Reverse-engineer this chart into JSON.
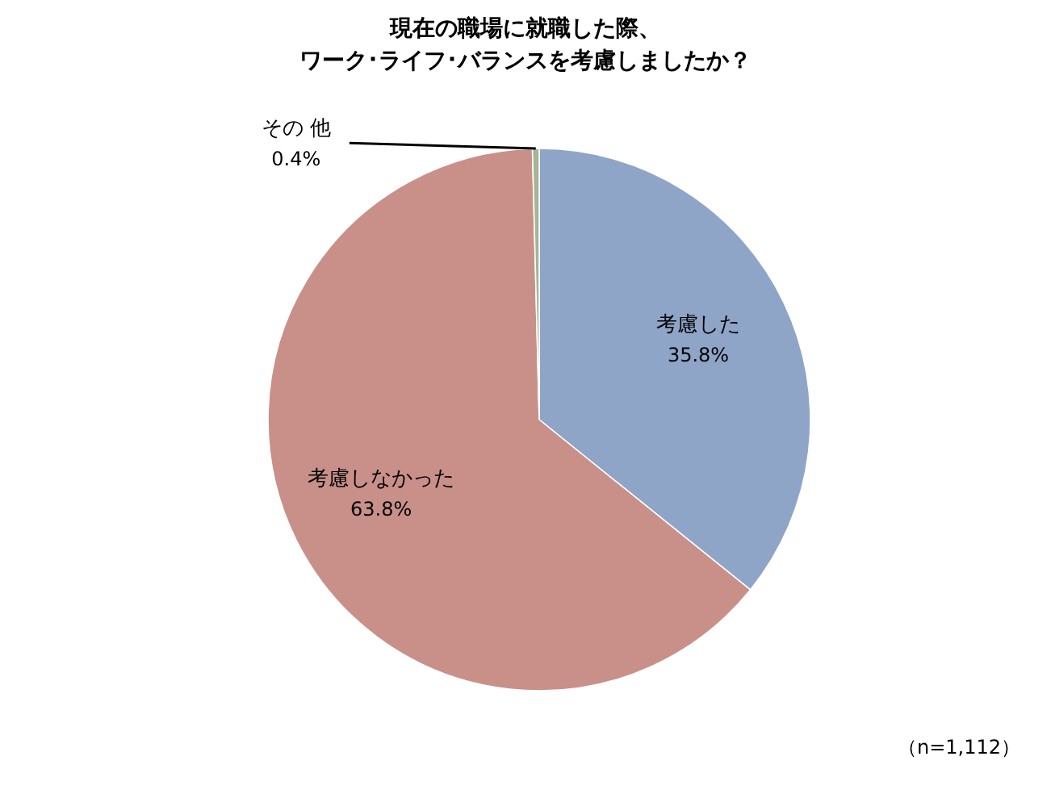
{
  "chart_data": {
    "type": "pie",
    "title": "現在の職場に就職した際、",
    "subtitle": "ワーク･ライフ･バランスを考慮しましたか？",
    "categories": [
      "考慮した",
      "考慮しなかった",
      "その 他"
    ],
    "values": [
      35.8,
      63.8,
      0.4
    ],
    "value_labels": [
      "35.8%",
      "63.8%",
      "0.4%"
    ],
    "colors": [
      "#8ea5c8",
      "#c9908a",
      "#a5b592"
    ],
    "annotations": [
      "（n=1,112）"
    ]
  }
}
